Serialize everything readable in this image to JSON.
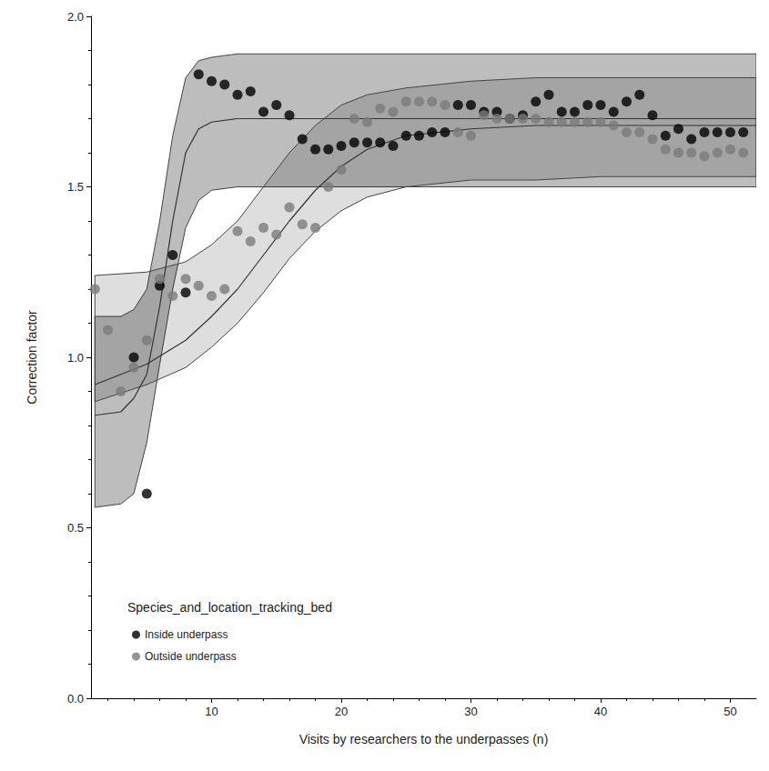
{
  "chart_data": {
    "type": "scatter",
    "x_label": "Visits by researchers to the underpasses (n)",
    "y_label": "Correction factor",
    "legend_title": "Species_and_location_tracking_bed",
    "legend": "lower left",
    "grid": false,
    "xlim": [
      0.7,
      52
    ],
    "xticks": [
      10,
      20,
      30,
      40,
      50
    ],
    "ylim": [
      0,
      2
    ],
    "yticks": [
      {
        "value": 0,
        "label": "0.0"
      },
      {
        "value": 0.5,
        "label": "0.5"
      },
      {
        "value": 1,
        "label": "1.0"
      },
      {
        "value": 1.5,
        "label": "1.5"
      },
      {
        "value": 2,
        "label": "2.0"
      }
    ],
    "series": [
      {
        "name": "Inside underpass",
        "color": "#000000",
        "marker": "circle",
        "x": [
          4,
          5,
          6,
          7,
          8,
          9,
          10,
          11,
          12,
          13,
          14,
          15,
          16,
          17,
          18,
          19,
          20,
          21,
          22,
          23,
          24,
          25,
          26,
          27,
          28,
          29,
          30,
          31,
          32,
          33,
          34,
          35,
          36,
          37,
          38,
          39,
          40,
          41,
          42,
          43,
          44,
          45,
          46,
          47,
          48,
          49,
          50,
          51
        ],
        "values": [
          1.0,
          0.6,
          1.21,
          1.3,
          1.19,
          1.83,
          1.81,
          1.8,
          1.77,
          1.78,
          1.72,
          1.74,
          1.71,
          1.64,
          1.61,
          1.61,
          1.62,
          1.63,
          1.63,
          1.63,
          1.62,
          1.65,
          1.65,
          1.66,
          1.66,
          1.74,
          1.74,
          1.72,
          1.72,
          1.7,
          1.71,
          1.75,
          1.77,
          1.72,
          1.72,
          1.74,
          1.74,
          1.72,
          1.75,
          1.77,
          1.71,
          1.65,
          1.67,
          1.64,
          1.66,
          1.66,
          1.66,
          1.66
        ],
        "fit": {
          "x": [
            1,
            3,
            4,
            5,
            6,
            7,
            8,
            9,
            10,
            12,
            20,
            52
          ],
          "center": [
            0.83,
            0.84,
            0.88,
            0.95,
            1.15,
            1.4,
            1.6,
            1.67,
            1.69,
            1.7,
            1.7,
            1.7
          ],
          "lower": [
            0.56,
            0.57,
            0.6,
            0.75,
            0.98,
            1.2,
            1.38,
            1.46,
            1.49,
            1.5,
            1.5,
            1.5
          ],
          "upper": [
            1.12,
            1.12,
            1.14,
            1.2,
            1.4,
            1.65,
            1.82,
            1.87,
            1.88,
            1.89,
            1.89,
            1.89
          ]
        }
      },
      {
        "name": "Outside underpass",
        "color": "#7a7a7a",
        "marker": "circle",
        "x": [
          1,
          2,
          3,
          4,
          5,
          6,
          7,
          8,
          9,
          10,
          11,
          12,
          13,
          14,
          15,
          16,
          17,
          18,
          19,
          20,
          21,
          22,
          23,
          24,
          25,
          26,
          27,
          28,
          29,
          30,
          31,
          32,
          33,
          34,
          35,
          36,
          37,
          38,
          39,
          40,
          41,
          42,
          43,
          44,
          45,
          46,
          47,
          48,
          49,
          50,
          51
        ],
        "values": [
          1.2,
          1.08,
          0.9,
          0.97,
          1.05,
          1.23,
          1.18,
          1.23,
          1.21,
          1.18,
          1.2,
          1.37,
          1.34,
          1.38,
          1.36,
          1.44,
          1.39,
          1.38,
          1.5,
          1.55,
          1.7,
          1.69,
          1.73,
          1.72,
          1.75,
          1.75,
          1.75,
          1.74,
          1.66,
          1.65,
          1.71,
          1.7,
          1.7,
          1.7,
          1.7,
          1.69,
          1.69,
          1.69,
          1.69,
          1.69,
          1.68,
          1.66,
          1.66,
          1.64,
          1.61,
          1.6,
          1.6,
          1.59,
          1.6,
          1.61,
          1.6
        ],
        "fit": {
          "x": [
            1,
            5,
            8,
            10,
            12,
            14,
            16,
            18,
            20,
            22,
            25,
            30,
            35,
            40,
            52
          ],
          "center": [
            0.92,
            0.98,
            1.05,
            1.12,
            1.2,
            1.3,
            1.4,
            1.49,
            1.56,
            1.61,
            1.65,
            1.67,
            1.68,
            1.68,
            1.68
          ],
          "lower": [
            0.87,
            0.92,
            0.97,
            1.03,
            1.1,
            1.19,
            1.29,
            1.37,
            1.43,
            1.47,
            1.5,
            1.52,
            1.52,
            1.53,
            1.53
          ],
          "upper": [
            1.24,
            1.25,
            1.28,
            1.33,
            1.4,
            1.5,
            1.6,
            1.68,
            1.74,
            1.77,
            1.79,
            1.81,
            1.82,
            1.82,
            1.82
          ]
        }
      }
    ]
  }
}
